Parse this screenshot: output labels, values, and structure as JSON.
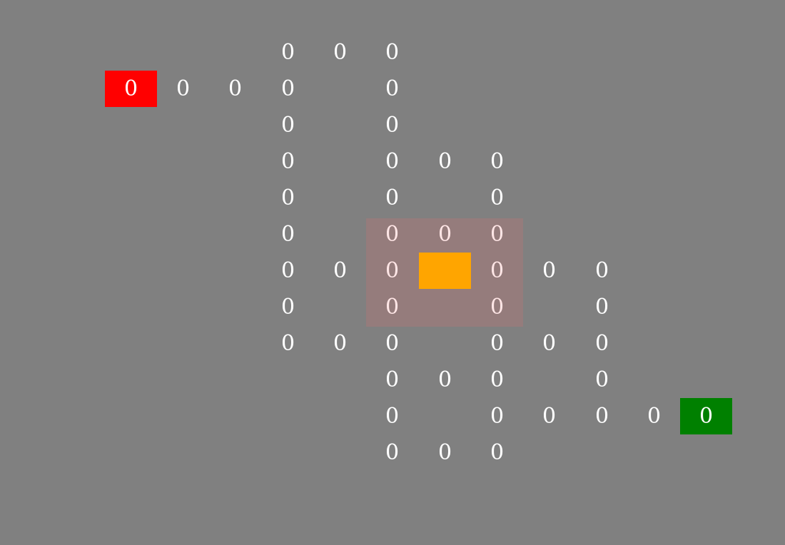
{
  "colors": {
    "background": "#808080",
    "start": "#ff0000",
    "goal": "#008000",
    "player": "#ffa500",
    "visibility_zone": "rgba(225,110,110,0.22)"
  },
  "grid": {
    "rows": 12,
    "cols": 14,
    "cells": [
      {
        "row": 0,
        "col": 5,
        "value": "0"
      },
      {
        "row": 0,
        "col": 6,
        "value": "0"
      },
      {
        "row": 0,
        "col": 7,
        "value": "0"
      },
      {
        "row": 1,
        "col": 2,
        "value": "0",
        "type": "start"
      },
      {
        "row": 1,
        "col": 3,
        "value": "0"
      },
      {
        "row": 1,
        "col": 4,
        "value": "0"
      },
      {
        "row": 1,
        "col": 5,
        "value": "0"
      },
      {
        "row": 1,
        "col": 7,
        "value": "0"
      },
      {
        "row": 2,
        "col": 5,
        "value": "0"
      },
      {
        "row": 2,
        "col": 7,
        "value": "0"
      },
      {
        "row": 3,
        "col": 5,
        "value": "0"
      },
      {
        "row": 3,
        "col": 7,
        "value": "0"
      },
      {
        "row": 3,
        "col": 8,
        "value": "0"
      },
      {
        "row": 3,
        "col": 9,
        "value": "0"
      },
      {
        "row": 4,
        "col": 5,
        "value": "0"
      },
      {
        "row": 4,
        "col": 7,
        "value": "0"
      },
      {
        "row": 4,
        "col": 9,
        "value": "0"
      },
      {
        "row": 5,
        "col": 5,
        "value": "0"
      },
      {
        "row": 5,
        "col": 7,
        "value": "0",
        "in_zone": true
      },
      {
        "row": 5,
        "col": 8,
        "value": "0",
        "in_zone": true
      },
      {
        "row": 5,
        "col": 9,
        "value": "0",
        "in_zone": true
      },
      {
        "row": 6,
        "col": 5,
        "value": "0"
      },
      {
        "row": 6,
        "col": 6,
        "value": "0"
      },
      {
        "row": 6,
        "col": 7,
        "value": "0",
        "in_zone": true
      },
      {
        "row": 6,
        "col": 8,
        "value": "",
        "type": "player"
      },
      {
        "row": 6,
        "col": 9,
        "value": "0",
        "in_zone": true
      },
      {
        "row": 6,
        "col": 10,
        "value": "0"
      },
      {
        "row": 6,
        "col": 11,
        "value": "0"
      },
      {
        "row": 7,
        "col": 5,
        "value": "0"
      },
      {
        "row": 7,
        "col": 7,
        "value": "0",
        "in_zone": true
      },
      {
        "row": 7,
        "col": 9,
        "value": "0",
        "in_zone": true
      },
      {
        "row": 7,
        "col": 11,
        "value": "0"
      },
      {
        "row": 8,
        "col": 5,
        "value": "0"
      },
      {
        "row": 8,
        "col": 6,
        "value": "0"
      },
      {
        "row": 8,
        "col": 7,
        "value": "0"
      },
      {
        "row": 8,
        "col": 9,
        "value": "0"
      },
      {
        "row": 8,
        "col": 10,
        "value": "0"
      },
      {
        "row": 8,
        "col": 11,
        "value": "0"
      },
      {
        "row": 9,
        "col": 7,
        "value": "0"
      },
      {
        "row": 9,
        "col": 8,
        "value": "0"
      },
      {
        "row": 9,
        "col": 9,
        "value": "0"
      },
      {
        "row": 9,
        "col": 11,
        "value": "0"
      },
      {
        "row": 10,
        "col": 7,
        "value": "0"
      },
      {
        "row": 10,
        "col": 9,
        "value": "0"
      },
      {
        "row": 10,
        "col": 10,
        "value": "0"
      },
      {
        "row": 10,
        "col": 11,
        "value": "0"
      },
      {
        "row": 10,
        "col": 12,
        "value": "0"
      },
      {
        "row": 10,
        "col": 13,
        "value": "0",
        "type": "goal"
      },
      {
        "row": 11,
        "col": 7,
        "value": "0"
      },
      {
        "row": 11,
        "col": 8,
        "value": "0"
      },
      {
        "row": 11,
        "col": 9,
        "value": "0"
      }
    ]
  }
}
